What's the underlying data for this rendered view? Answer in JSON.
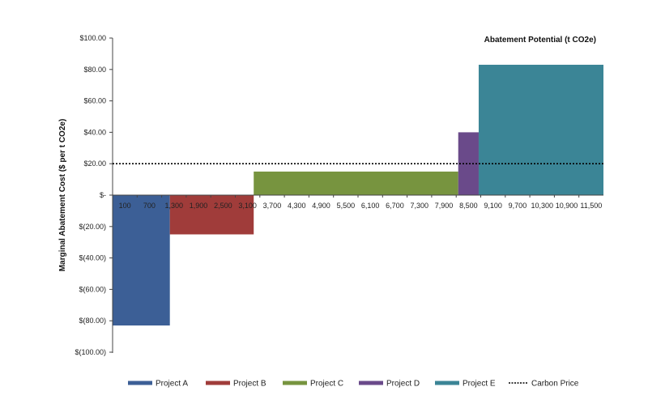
{
  "chart_data": {
    "type": "bar",
    "variant": "marginal-abatement-cost-curve",
    "title": "Abatement Potential (t CO2e)",
    "xlabel": "Abatement Potential (t CO2e)",
    "ylabel": "Marginal Abatement Cost ($ per t CO2e)",
    "ylim": [
      -100,
      100
    ],
    "xlim": [
      100,
      12100
    ],
    "y_ticks": [
      100,
      80,
      60,
      40,
      20,
      0,
      -20,
      -40,
      -60,
      -80,
      -100
    ],
    "y_tick_labels": [
      "$100.00",
      "$80.00",
      "$60.00",
      "$40.00",
      "$20.00",
      "$-",
      "$(20.00)",
      "$(40.00)",
      "$(60.00)",
      "$(80.00)",
      "$(100.00)"
    ],
    "x_ticks": [
      100,
      700,
      1300,
      1900,
      2500,
      3100,
      3700,
      4300,
      4900,
      5500,
      6100,
      6700,
      7300,
      7900,
      8500,
      9100,
      9700,
      10300,
      10900,
      11500
    ],
    "x_tick_labels": [
      "100",
      "700",
      "1,300",
      "1,900",
      "2,500",
      "3,100",
      "3,700",
      "4,300",
      "4,900",
      "5,500",
      "6,100",
      "6,700",
      "7,300",
      "7,900",
      "8,500",
      "9,100",
      "9,700",
      "10,300",
      "10,900",
      "11,500"
    ],
    "series": [
      {
        "name": "Project A",
        "color": "#3c5f96",
        "x_start": 100,
        "x_end": 1500,
        "value": -83
      },
      {
        "name": "Project B",
        "color": "#a03c3a",
        "x_start": 1500,
        "x_end": 3550,
        "value": -25
      },
      {
        "name": "Project C",
        "color": "#77943f",
        "x_start": 3550,
        "x_end": 8550,
        "value": 15
      },
      {
        "name": "Project D",
        "color": "#6a4a8a",
        "x_start": 8550,
        "x_end": 9050,
        "value": 40
      },
      {
        "name": "Project E",
        "color": "#3b8596",
        "x_start": 9050,
        "x_end": 12100,
        "value": 83
      }
    ],
    "reference_line": {
      "name": "Carbon Price",
      "value": 20,
      "color": "#000000"
    },
    "legend_position": "bottom"
  }
}
